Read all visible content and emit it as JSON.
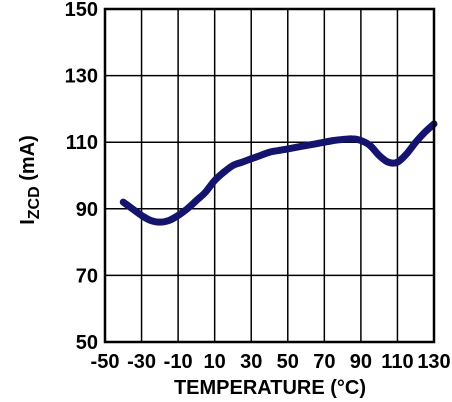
{
  "chart_data": {
    "type": "line",
    "title": "",
    "xlabel": "TEMPERATURE (°C)",
    "ylabel": {
      "main": "I",
      "subscript": "ZCD",
      "suffix": " (mA)"
    },
    "xlim": [
      -50,
      130
    ],
    "ylim": [
      50,
      150
    ],
    "xticks": [
      -50,
      -30,
      -10,
      10,
      30,
      50,
      70,
      90,
      110,
      130
    ],
    "yticks": [
      50,
      70,
      90,
      110,
      130,
      150
    ],
    "xtick_labels": [
      "-50",
      "-30",
      "-10",
      "10",
      "30",
      "50",
      "70",
      "90",
      "110",
      "130"
    ],
    "ytick_labels": [
      "50",
      "70",
      "90",
      "110",
      "130",
      "150"
    ],
    "grid": true,
    "series": [
      {
        "color": "#14146e",
        "x": [
          -40,
          -35,
          -30,
          -25,
          -20,
          -15,
          -10,
          -5,
          0,
          5,
          10,
          15,
          20,
          25,
          30,
          35,
          40,
          45,
          50,
          55,
          60,
          65,
          70,
          75,
          80,
          85,
          90,
          95,
          100,
          105,
          110,
          115,
          120,
          125,
          130
        ],
        "y": [
          92,
          90,
          88,
          86.5,
          86,
          86.5,
          88,
          90,
          92.5,
          95,
          98.5,
          101,
          103,
          104,
          105,
          106,
          107,
          107.5,
          108,
          108.5,
          109,
          109.5,
          110,
          110.5,
          110.8,
          111,
          110.5,
          109,
          106,
          104,
          104,
          106.5,
          110,
          113,
          115.5
        ]
      }
    ]
  }
}
